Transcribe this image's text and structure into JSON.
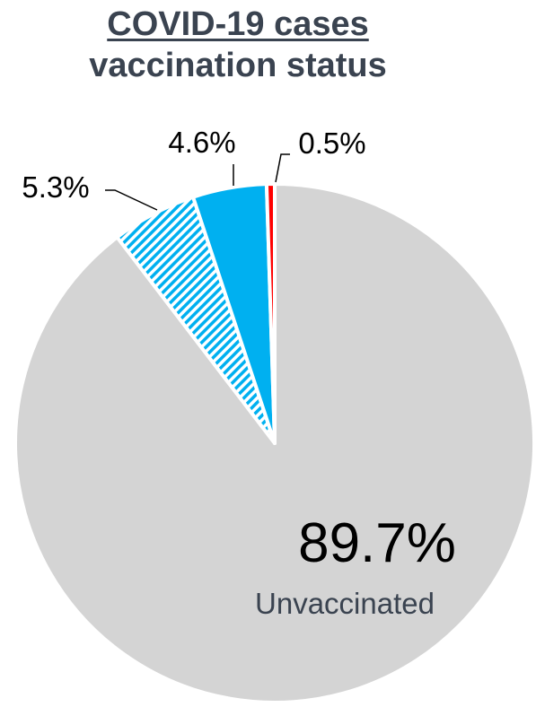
{
  "chart_data": {
    "type": "pie",
    "title": "COVID-19 cases",
    "subtitle": "vaccination status",
    "slices": [
      {
        "label": "Unvaccinated",
        "value": 89.7,
        "display": "89.7%",
        "color": "#d4d4d4",
        "pattern": "solid"
      },
      {
        "label": "",
        "value": 5.3,
        "display": "5.3%",
        "color": "#00b0f0",
        "pattern": "stripes"
      },
      {
        "label": "",
        "value": 4.6,
        "display": "4.6%",
        "color": "#00b0f0",
        "pattern": "solid"
      },
      {
        "label": "",
        "value": 0.5,
        "display": "0.5%",
        "color": "#ff0000",
        "pattern": "solid"
      }
    ],
    "text_color": "#3a4350",
    "label_color": "#000000"
  }
}
